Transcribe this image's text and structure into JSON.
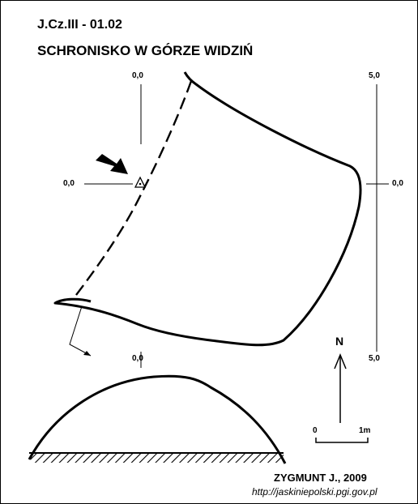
{
  "header": {
    "code": "J.Cz.III - 01.02",
    "name": "SCHRONISKO W GÓRZE WIDZIŃ"
  },
  "labels": {
    "top_left_reference": "0,0",
    "top_right_reference": "5,0",
    "left_reference": "0,0",
    "right_reference": "0,0",
    "bottom_left_reference": "0,0",
    "bottom_right_reference": "5,0"
  },
  "north_arrow": {
    "letter": "N"
  },
  "scale_bar": {
    "start_label": "0",
    "end_label": "1m"
  },
  "credits": {
    "author": "ZYGMUNT J., 2009",
    "url": "http://jaskiniepolski.pgi.gov.pl"
  },
  "colors": {
    "ink": "#000000",
    "paper": "#ffffff"
  }
}
